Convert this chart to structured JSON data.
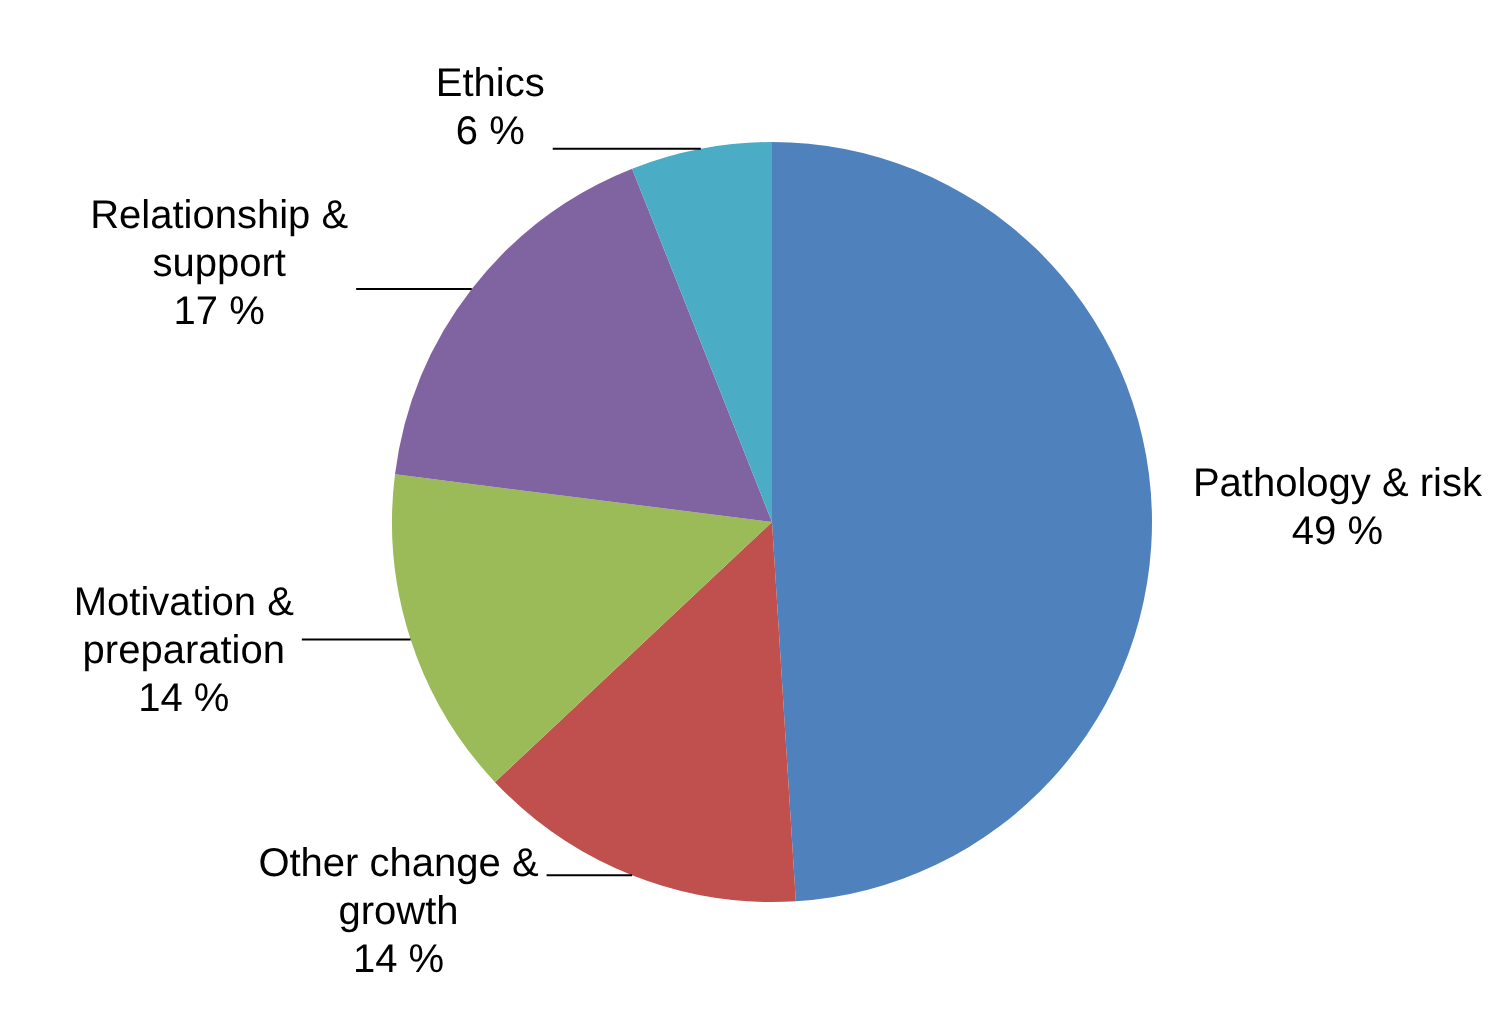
{
  "chart_data": {
    "type": "pie",
    "categories": [
      "Pathology & risk",
      "Other change & growth",
      "Motivation & preparation",
      "Relationship & support",
      "Ethics"
    ],
    "values": [
      49,
      14,
      14,
      17,
      6
    ],
    "colors": [
      "#4f81bd",
      "#c0504d",
      "#9bbb59",
      "#8064a2",
      "#4bacc6"
    ],
    "value_labels": [
      "49 %",
      "14 %",
      "14 %",
      "17 %",
      "6 %"
    ],
    "legend": false
  }
}
